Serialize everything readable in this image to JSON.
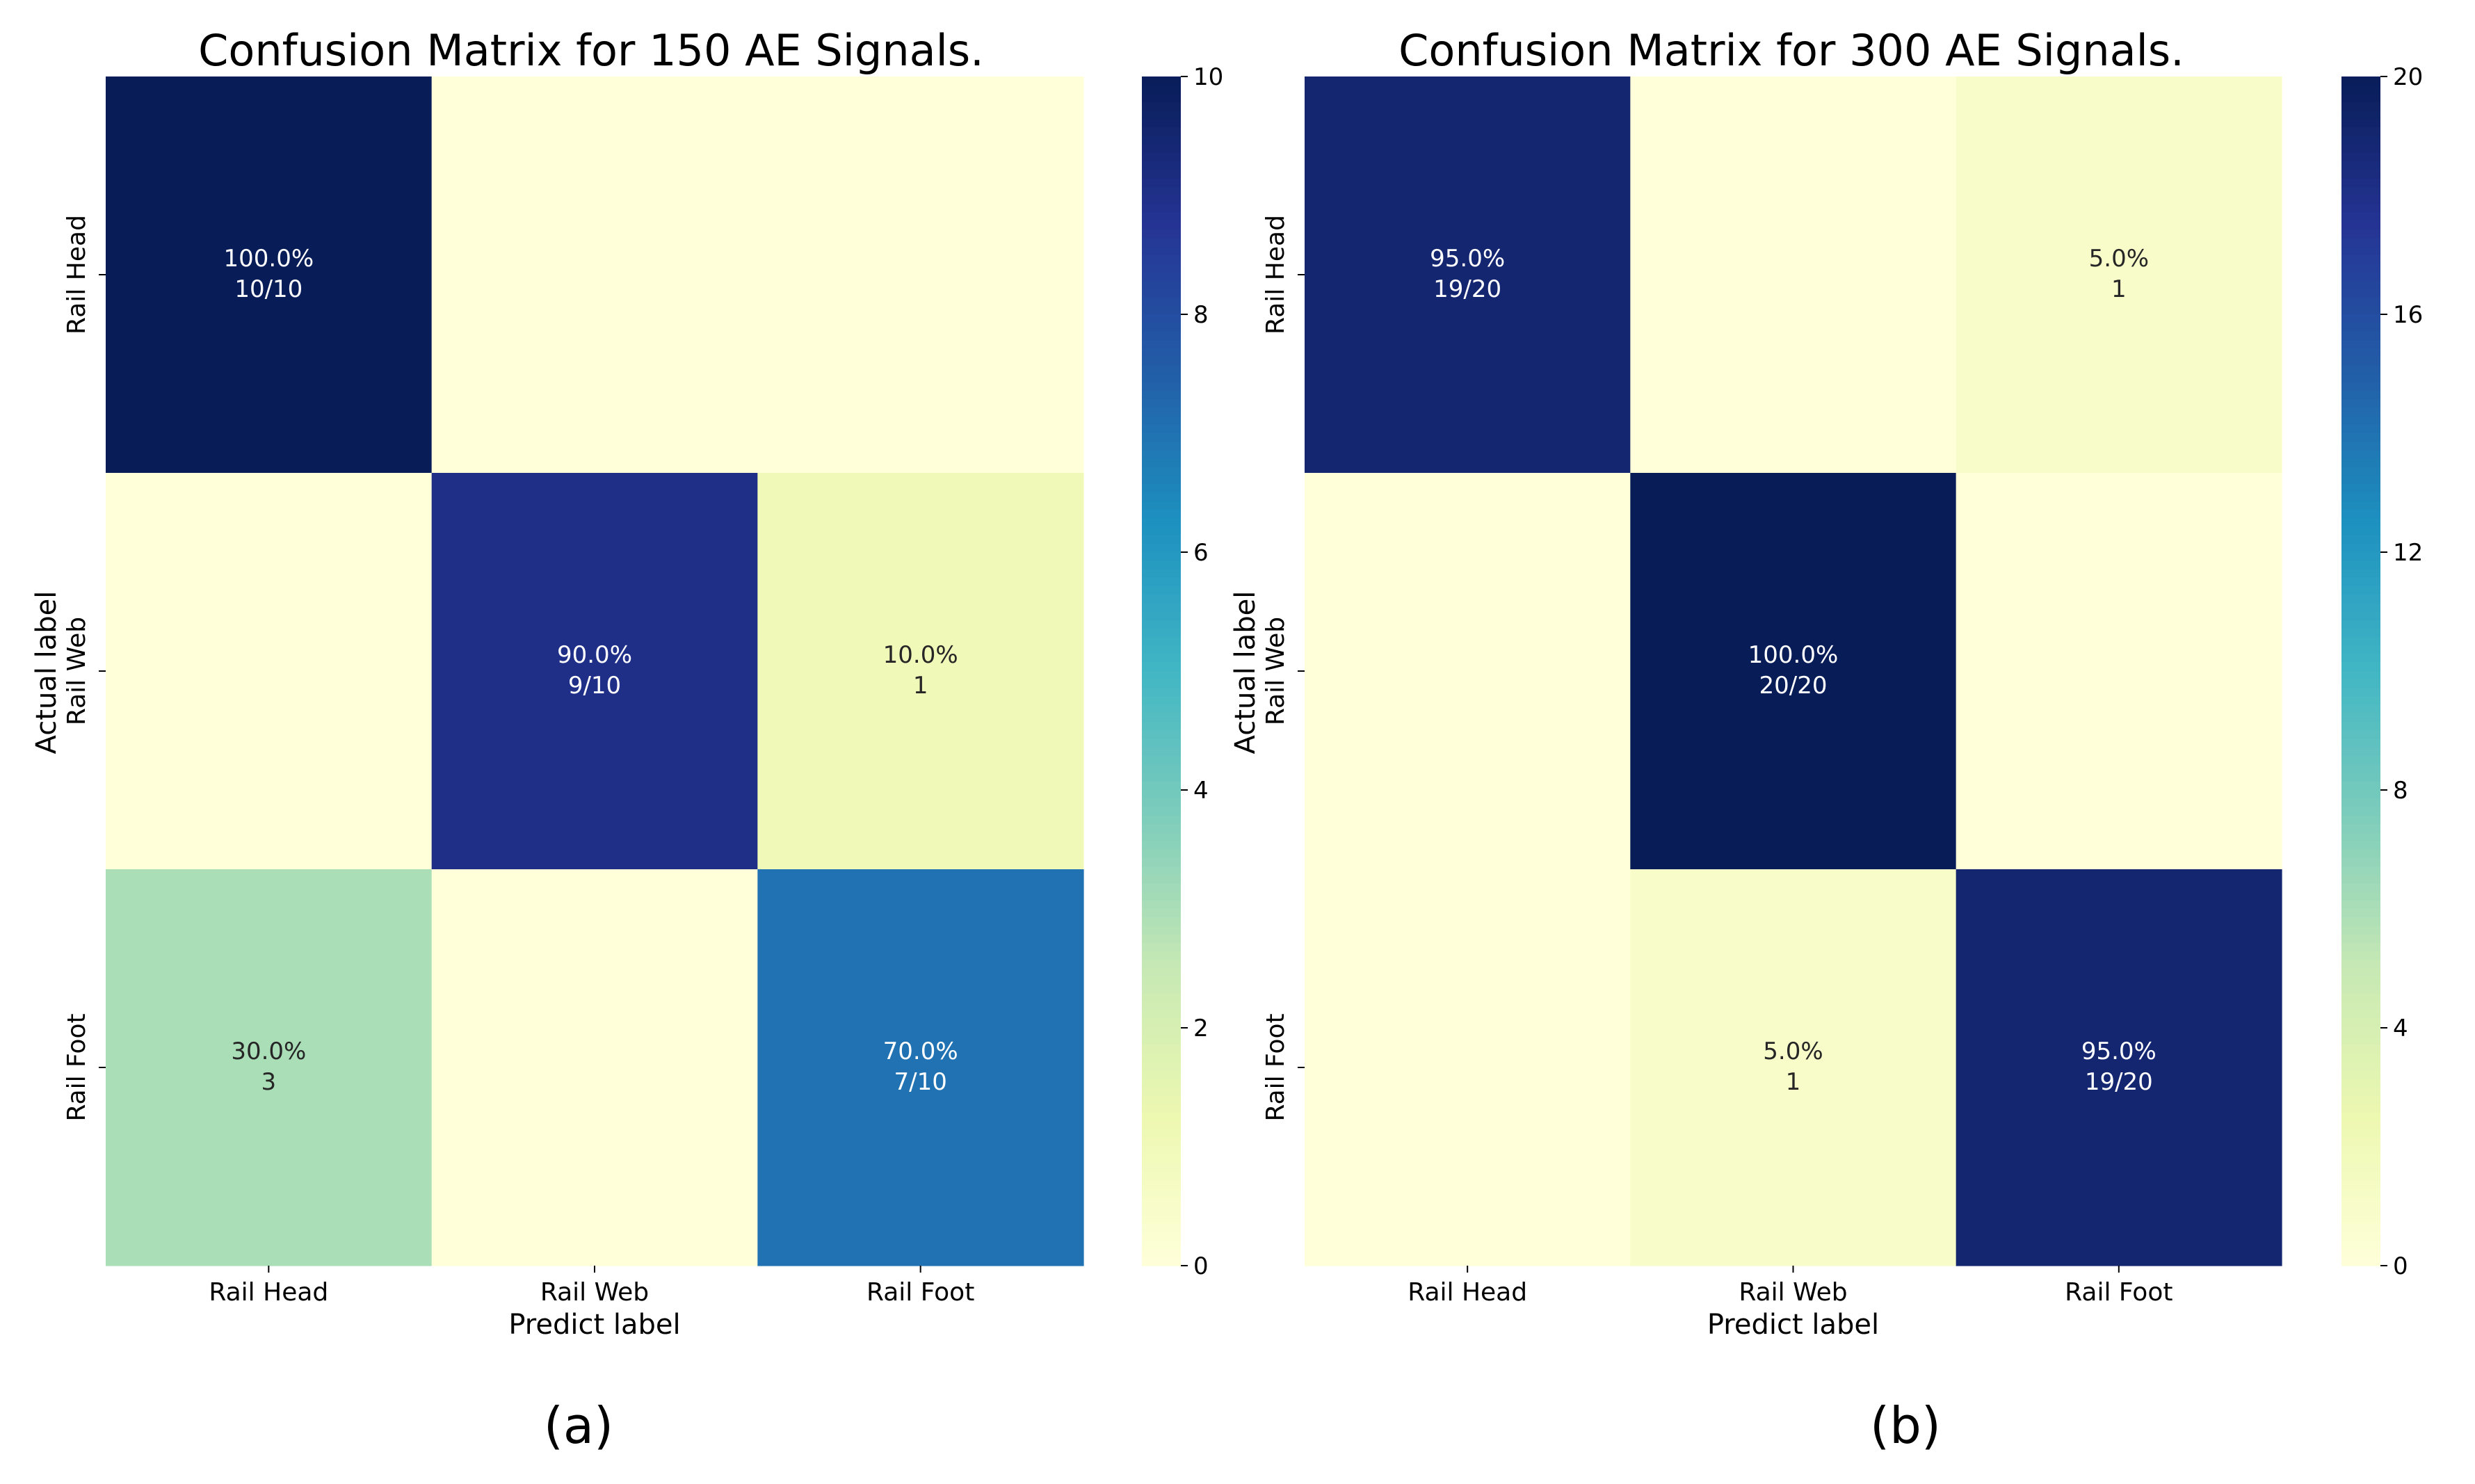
{
  "colormap": [
    "#ffffd9",
    "#edf8b1",
    "#c7e9b4",
    "#7fcdbb",
    "#41b6c4",
    "#1d91c0",
    "#225ea8",
    "#253494",
    "#081d58"
  ],
  "text_light": "#ffffff",
  "text_dark": "#262626",
  "chart_data": [
    {
      "type": "heatmap",
      "title": "Confusion Matrix for 150 AE Signals.",
      "xlabel": "Predict label",
      "ylabel": "Actual label",
      "x_categories": [
        "Rail Head",
        "Rail Web",
        "Rail Foot"
      ],
      "y_categories": [
        "Rail Head",
        "Rail Web",
        "Rail Foot"
      ],
      "values": [
        [
          10,
          0,
          0
        ],
        [
          0,
          9,
          1
        ],
        [
          3,
          0,
          7
        ]
      ],
      "annotations": [
        [
          [
            "100.0%",
            "10/10"
          ],
          null,
          null
        ],
        [
          null,
          [
            "90.0%",
            "9/10"
          ],
          [
            "10.0%",
            "1"
          ]
        ],
        [
          [
            "30.0%",
            "3"
          ],
          null,
          [
            "70.0%",
            "7/10"
          ]
        ]
      ],
      "vmin": 0,
      "vmax": 10,
      "colorbar_ticks": [
        "0",
        "2",
        "4",
        "6",
        "8",
        "10"
      ],
      "caption": "(a)"
    },
    {
      "type": "heatmap",
      "title": "Confusion Matrix for 300 AE Signals.",
      "xlabel": "Predict label",
      "ylabel": "Actual label",
      "x_categories": [
        "Rail Head",
        "Rail Web",
        "Rail Foot"
      ],
      "y_categories": [
        "Rail Head",
        "Rail Web",
        "Rail Foot"
      ],
      "values": [
        [
          19,
          0,
          1
        ],
        [
          0,
          20,
          0
        ],
        [
          0,
          1,
          19
        ]
      ],
      "annotations": [
        [
          [
            "95.0%",
            "19/20"
          ],
          null,
          [
            "5.0%",
            "1"
          ]
        ],
        [
          null,
          [
            "100.0%",
            "20/20"
          ],
          null
        ],
        [
          null,
          [
            "5.0%",
            "1"
          ],
          [
            "95.0%",
            "19/20"
          ]
        ]
      ],
      "vmin": 0,
      "vmax": 20,
      "colorbar_ticks": [
        "0",
        "4",
        "8",
        "12",
        "16",
        "20"
      ],
      "caption": "(b)"
    }
  ]
}
